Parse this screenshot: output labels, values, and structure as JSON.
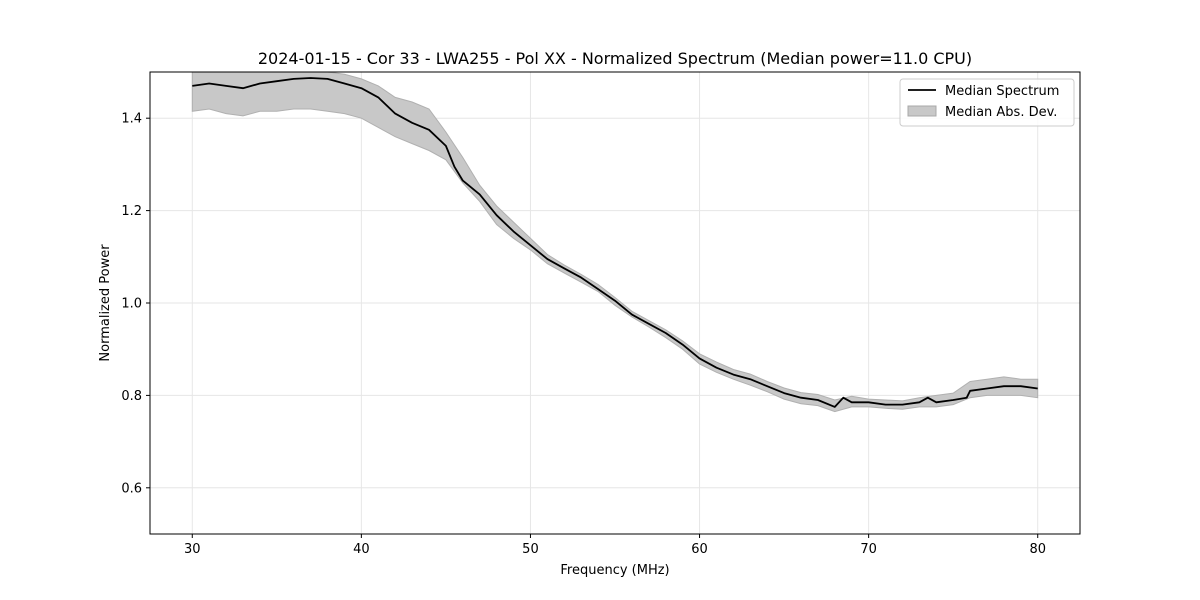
{
  "chart_data": {
    "type": "line",
    "title": "2024-01-15 - Cor 33 - LWA255 - Pol XX - Normalized Spectrum (Median power=11.0 CPU)",
    "xlabel": "Frequency (MHz)",
    "ylabel": "Normalized Power",
    "xlim": [
      27.5,
      82.5
    ],
    "ylim": [
      0.5,
      1.5
    ],
    "xticks": [
      30,
      40,
      50,
      60,
      70,
      80
    ],
    "yticks": [
      0.6,
      0.8,
      1.0,
      1.2,
      1.4
    ],
    "xtick_labels": [
      "30",
      "40",
      "50",
      "60",
      "70",
      "80"
    ],
    "ytick_labels": [
      "0.6",
      "0.8",
      "1.0",
      "1.2",
      "1.4"
    ],
    "grid": true,
    "legend_position": "top-right",
    "series": [
      {
        "name": "Median Spectrum",
        "kind": "line",
        "color": "#000000",
        "x": [
          30,
          31,
          32,
          33,
          34,
          35,
          36,
          37,
          38,
          39,
          40,
          41,
          42,
          43,
          44,
          45,
          45.5,
          46,
          47,
          48,
          49,
          50,
          51,
          52,
          53,
          54,
          55,
          56,
          57,
          58,
          59,
          60,
          61,
          62,
          63,
          64,
          65,
          66,
          67,
          68,
          68.5,
          69,
          70,
          71,
          72,
          73,
          73.5,
          74,
          75,
          75.8,
          76,
          77,
          78,
          79,
          80
        ],
        "y": [
          1.47,
          1.475,
          1.47,
          1.465,
          1.475,
          1.48,
          1.485,
          1.487,
          1.485,
          1.475,
          1.465,
          1.445,
          1.41,
          1.39,
          1.375,
          1.34,
          1.295,
          1.265,
          1.235,
          1.19,
          1.155,
          1.125,
          1.095,
          1.075,
          1.055,
          1.03,
          1.005,
          0.975,
          0.955,
          0.935,
          0.91,
          0.88,
          0.86,
          0.845,
          0.835,
          0.82,
          0.805,
          0.795,
          0.79,
          0.775,
          0.795,
          0.785,
          0.785,
          0.78,
          0.78,
          0.785,
          0.795,
          0.785,
          0.79,
          0.795,
          0.81,
          0.815,
          0.82,
          0.82,
          0.815
        ]
      },
      {
        "name": "Median Abs. Dev.",
        "kind": "band",
        "color": "#c8c8c8",
        "x": [
          30,
          31,
          32,
          33,
          34,
          35,
          36,
          37,
          38,
          39,
          40,
          41,
          42,
          43,
          44,
          45,
          46,
          47,
          48,
          49,
          50,
          51,
          52,
          53,
          54,
          55,
          56,
          57,
          58,
          59,
          60,
          61,
          62,
          63,
          64,
          65,
          66,
          67,
          68,
          69,
          70,
          71,
          72,
          73,
          74,
          75,
          76,
          77,
          78,
          79,
          80
        ],
        "lower": [
          1.415,
          1.42,
          1.41,
          1.405,
          1.415,
          1.415,
          1.42,
          1.42,
          1.415,
          1.41,
          1.4,
          1.38,
          1.36,
          1.345,
          1.33,
          1.31,
          1.26,
          1.22,
          1.17,
          1.14,
          1.115,
          1.085,
          1.065,
          1.045,
          1.025,
          0.995,
          0.97,
          0.948,
          0.925,
          0.9,
          0.868,
          0.85,
          0.835,
          0.822,
          0.808,
          0.792,
          0.782,
          0.778,
          0.765,
          0.775,
          0.775,
          0.772,
          0.77,
          0.775,
          0.775,
          0.78,
          0.795,
          0.8,
          0.8,
          0.8,
          0.795
        ],
        "upper": [
          1.5,
          1.5,
          1.5,
          1.5,
          1.5,
          1.5,
          1.5,
          1.5,
          1.5,
          1.495,
          1.485,
          1.47,
          1.445,
          1.435,
          1.42,
          1.37,
          1.315,
          1.255,
          1.21,
          1.175,
          1.14,
          1.105,
          1.082,
          1.062,
          1.04,
          1.012,
          0.982,
          0.962,
          0.942,
          0.918,
          0.89,
          0.872,
          0.856,
          0.846,
          0.83,
          0.816,
          0.806,
          0.802,
          0.79,
          0.798,
          0.792,
          0.79,
          0.788,
          0.795,
          0.8,
          0.805,
          0.83,
          0.835,
          0.84,
          0.835,
          0.835
        ]
      }
    ]
  }
}
